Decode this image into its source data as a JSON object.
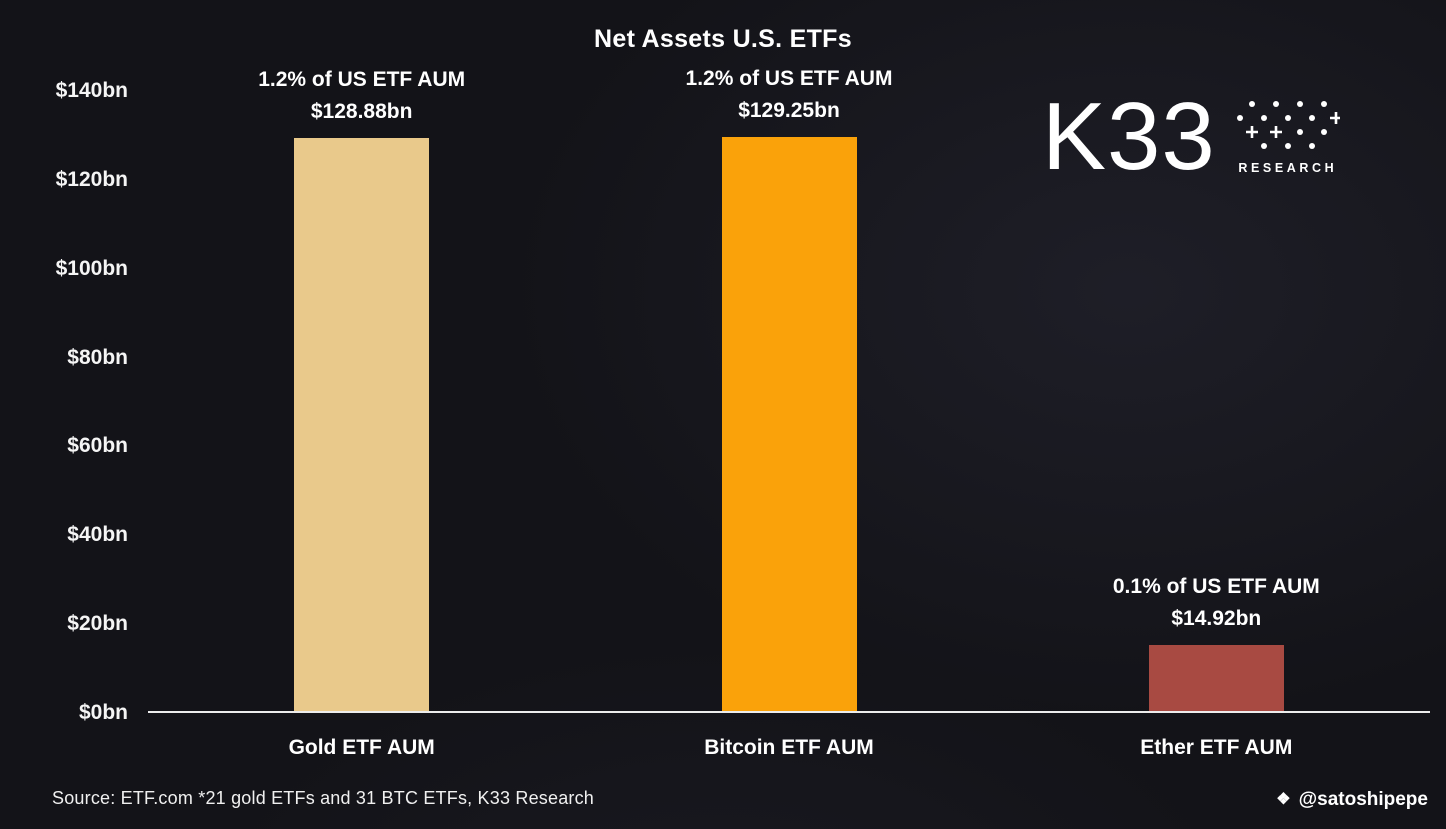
{
  "chart_data": {
    "type": "bar",
    "title": "Net Assets U.S. ETFs",
    "categories": [
      "Gold ETF AUM",
      "Bitcoin ETF AUM",
      "Ether ETF AUM"
    ],
    "values": [
      128.88,
      129.25,
      14.92
    ],
    "unit": "$bn",
    "annotations": [
      {
        "line1": "1.2% of US ETF AUM",
        "line2": "$128.88bn"
      },
      {
        "line1": "1.2% of US ETF AUM",
        "line2": "$129.25bn"
      },
      {
        "line1": "0.1% of US ETF AUM",
        "line2": "$14.92bn"
      }
    ],
    "colors": [
      "#e9c98b",
      "#faa20a",
      "#a84a42"
    ],
    "background_color": "#131318",
    "axis_line_color": "#ececec",
    "ylim": [
      0,
      140
    ],
    "ytick_values": [
      0,
      20,
      40,
      60,
      80,
      100,
      120,
      140
    ],
    "ytick_labels": [
      "$0bn",
      "$20bn",
      "$40bn",
      "$60bn",
      "$80bn",
      "$100bn",
      "$120bn",
      "$140bn"
    ],
    "grid": false,
    "legend": false
  },
  "branding": {
    "logo_text": "K33",
    "logo_sub": "RESEARCH"
  },
  "footer": {
    "source": "Source: ETF.com *21 gold ETFs and 31 BTC ETFs, K33 Research",
    "credit": "@satoshipepe"
  },
  "icons": {
    "credit_icon": "❖"
  }
}
